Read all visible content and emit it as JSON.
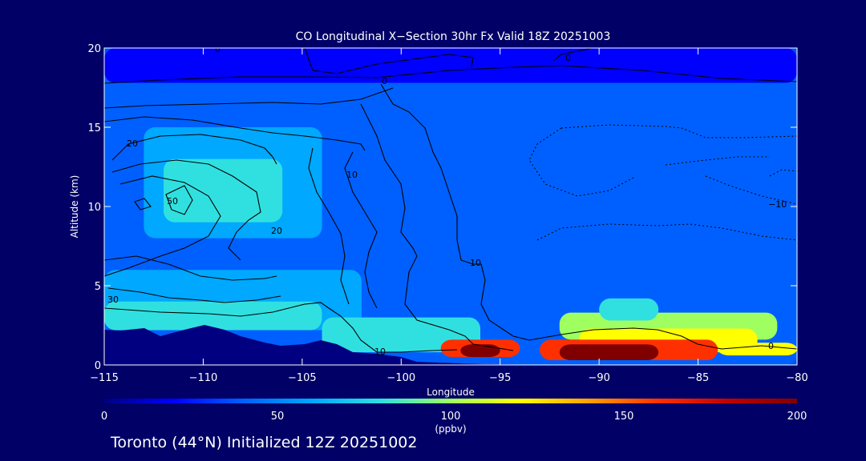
{
  "chart_data": {
    "type": "heatmap",
    "title": "CO Longitudinal X−Section 30hr  Fx Valid 18Z 20251003",
    "xlabel": "Longitude",
    "ylabel": "Altitude (km)",
    "xlim": [
      -115,
      -80
    ],
    "ylim": [
      0,
      20
    ],
    "x_ticks": [
      -115,
      -110,
      -105,
      -100,
      -95,
      -90,
      -85,
      -80
    ],
    "x_tick_labels": [
      "−115",
      "−110",
      "−105",
      "−100",
      "−95",
      "−90",
      "−85",
      "−80"
    ],
    "y_ticks": [
      0,
      5,
      10,
      15,
      20
    ],
    "y_tick_labels": [
      "0",
      "5",
      "10",
      "15",
      "20"
    ],
    "colorbar": {
      "min": 0,
      "max": 200,
      "ticks": [
        0,
        50,
        100,
        150,
        200
      ],
      "tick_labels": [
        "0",
        "50",
        "100",
        "150",
        "200"
      ],
      "label": "(ppbv)",
      "colors": [
        "#000080",
        "#0000ff",
        "#0060ff",
        "#00a8ff",
        "#30e0e0",
        "#a0ff60",
        "#ffff00",
        "#ffa000",
        "#ff3000",
        "#c00000",
        "#800000"
      ]
    },
    "levels": [
      0,
      40,
      60,
      70,
      80,
      95,
      110,
      130,
      150,
      170,
      190
    ],
    "cells": [
      {
        "x0": -115,
        "x1": -80,
        "y0": 0,
        "y1": 20,
        "v": 60
      },
      {
        "x0": -115,
        "x1": -80,
        "y0": 17.8,
        "y1": 20,
        "v": 40
      },
      {
        "x0": -101,
        "x1": -80,
        "y0": 15.5,
        "y1": 17.8,
        "v": 60
      },
      {
        "x0": -113,
        "x1": -104,
        "y0": 8,
        "y1": 15,
        "v": 70
      },
      {
        "x0": -112,
        "x1": -106,
        "y0": 9,
        "y1": 13,
        "v": 80
      },
      {
        "x0": -115,
        "x1": -102,
        "y0": 2.2,
        "y1": 6,
        "v": 70
      },
      {
        "x0": -115,
        "x1": -104,
        "y0": 2.2,
        "y1": 4,
        "v": 80
      },
      {
        "x0": -104,
        "x1": -96,
        "y0": 0.8,
        "y1": 3,
        "v": 80
      },
      {
        "x0": -92,
        "x1": -81,
        "y0": 1.6,
        "y1": 3.3,
        "v": 95
      },
      {
        "x0": -90,
        "x1": -87,
        "y0": 2.8,
        "y1": 4.2,
        "v": 80
      },
      {
        "x0": -91,
        "x1": -82,
        "y0": 0.8,
        "y1": 2.3,
        "v": 110
      },
      {
        "x0": -98,
        "x1": -94,
        "y0": 0.5,
        "y1": 1.6,
        "v": 150
      },
      {
        "x0": -93,
        "x1": -84,
        "y0": 0.3,
        "y1": 1.6,
        "v": 150
      },
      {
        "x0": -97,
        "x1": -95,
        "y0": 0.5,
        "y1": 1.3,
        "v": 190
      },
      {
        "x0": -92,
        "x1": -87,
        "y0": 0.3,
        "y1": 1.3,
        "v": 190
      },
      {
        "x0": -84,
        "x1": -80,
        "y0": 0.6,
        "y1": 1.4,
        "v": 110
      }
    ],
    "contour_labels": [
      "0",
      "0",
      "0",
      "10",
      "10",
      "10",
      "20",
      "20",
      "30",
      "50",
      "−10"
    ],
    "annotation": "Toronto (44°N) Initialized 12Z 20251002"
  }
}
